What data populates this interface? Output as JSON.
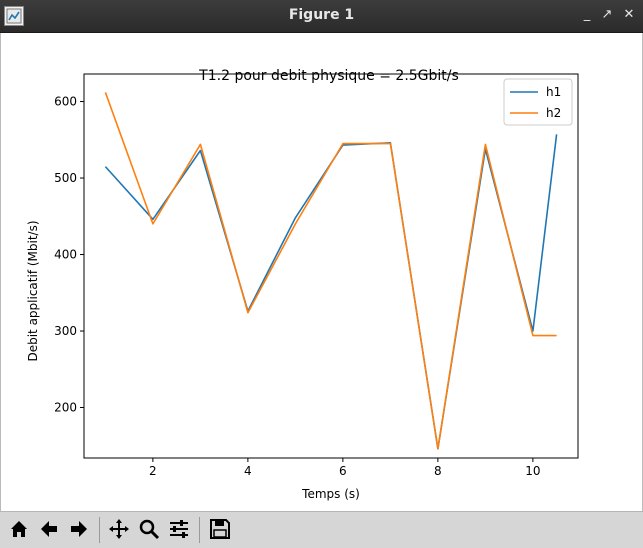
{
  "window": {
    "title": "Figure 1",
    "min_glyph": "_",
    "max_glyph": "↗",
    "close_glyph": "✕"
  },
  "toolbar": {
    "buttons": [
      {
        "name": "home-icon"
      },
      {
        "name": "back-arrow-icon"
      },
      {
        "name": "forward-arrow-icon"
      },
      {
        "name": "pan-icon"
      },
      {
        "name": "zoom-icon"
      },
      {
        "name": "configure-subplots-icon"
      },
      {
        "name": "save-icon"
      }
    ]
  },
  "chart_data": {
    "type": "line",
    "title": "T1.2 pour debit physique = 2.5Gbit/s",
    "xlabel": "Temps (s)",
    "ylabel": "Debit applicatif (Mbit/s)",
    "xlim": [
      0.55,
      10.95
    ],
    "ylim": [
      134,
      636
    ],
    "xticks": [
      2,
      4,
      6,
      8,
      10
    ],
    "yticks": [
      200,
      300,
      400,
      500,
      600
    ],
    "legend_position": "top-right",
    "series": [
      {
        "name": "h1",
        "color": "#1f77b4",
        "x": [
          1,
          2,
          3,
          4,
          5,
          6,
          7,
          8,
          9,
          10,
          10.5
        ],
        "y": [
          515,
          446,
          536,
          326,
          448,
          543,
          546,
          146,
          538,
          300,
          557
        ]
      },
      {
        "name": "h2",
        "color": "#ff7f0e",
        "x": [
          1,
          2,
          3,
          4,
          5,
          6,
          7,
          8,
          9,
          10,
          10.5
        ],
        "y": [
          612,
          440,
          544,
          324,
          440,
          545,
          545,
          146,
          544,
          294,
          294
        ]
      }
    ]
  }
}
